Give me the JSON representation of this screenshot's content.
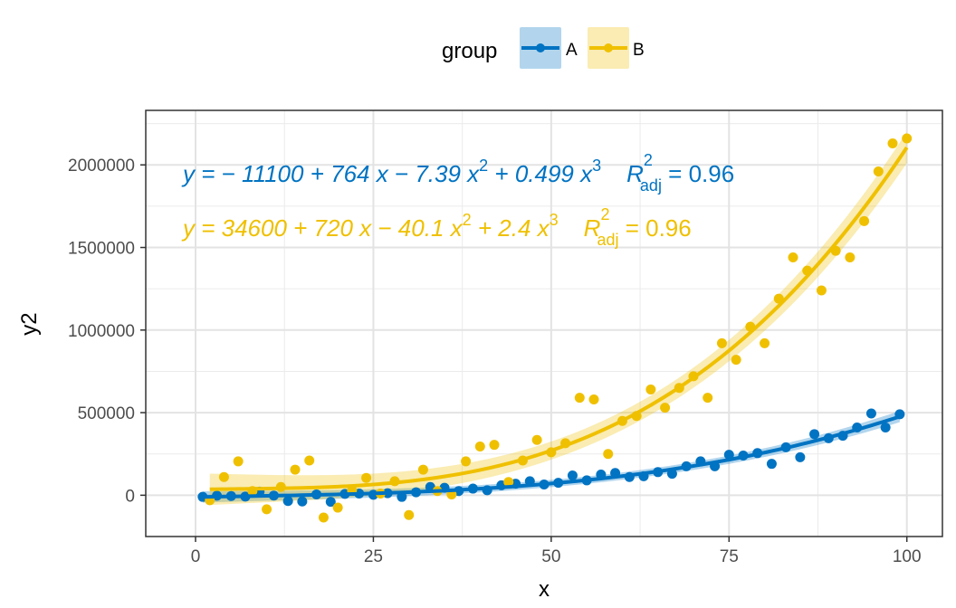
{
  "chart_data": {
    "type": "scatter",
    "xlabel": "x",
    "ylabel": "y2",
    "xlim": [
      -7,
      105
    ],
    "ylim": [
      -250000,
      2330000
    ],
    "x_ticks": [
      0,
      25,
      50,
      75,
      100
    ],
    "x_tick_labels": [
      "0",
      "25",
      "50",
      "75",
      "100"
    ],
    "y_ticks": [
      0,
      500000,
      1000000,
      1500000,
      2000000
    ],
    "y_tick_labels": [
      "0",
      "500000",
      "1000000",
      "1500000",
      "2000000"
    ],
    "grid": true,
    "legend": {
      "title": "group",
      "position": "top",
      "entries": [
        "A",
        "B"
      ]
    },
    "series": [
      {
        "name": "A",
        "color": "#0073C2",
        "fit": {
          "type": "cubic",
          "coef": [
            -11100,
            764,
            -7.39,
            0.499
          ],
          "r2_adj": 0.96
        },
        "equation": {
          "prefix": "y = − 11100 + 764 x − 7.39 x",
          "mid": " + 0.499 x",
          "rlabel": "R",
          "rsub": "adj",
          "rsup": "2",
          "rvalue": " = 0.96",
          "sup": "2",
          "sup3": "3"
        },
        "points": [
          [
            1,
            -10000
          ],
          [
            3,
            -3000
          ],
          [
            5,
            -5000
          ],
          [
            7,
            -8000
          ],
          [
            9,
            22000
          ],
          [
            11,
            -2000
          ],
          [
            13,
            -35000
          ],
          [
            15,
            -38000
          ],
          [
            17,
            5000
          ],
          [
            19,
            -40000
          ],
          [
            21,
            8000
          ],
          [
            23,
            10000
          ],
          [
            25,
            3000
          ],
          [
            27,
            12000
          ],
          [
            29,
            -10000
          ],
          [
            31,
            18000
          ],
          [
            33,
            50000
          ],
          [
            35,
            45000
          ],
          [
            37,
            25000
          ],
          [
            39,
            40000
          ],
          [
            41,
            30000
          ],
          [
            43,
            60000
          ],
          [
            45,
            70000
          ],
          [
            47,
            85000
          ],
          [
            49,
            65000
          ],
          [
            51,
            75000
          ],
          [
            53,
            120000
          ],
          [
            55,
            90000
          ],
          [
            57,
            125000
          ],
          [
            59,
            135000
          ],
          [
            61,
            110000
          ],
          [
            63,
            115000
          ],
          [
            65,
            140000
          ],
          [
            67,
            130000
          ],
          [
            69,
            175000
          ],
          [
            71,
            205000
          ],
          [
            73,
            175000
          ],
          [
            75,
            245000
          ],
          [
            77,
            240000
          ],
          [
            79,
            255000
          ],
          [
            81,
            190000
          ],
          [
            83,
            290000
          ],
          [
            85,
            230000
          ],
          [
            87,
            370000
          ],
          [
            89,
            345000
          ],
          [
            91,
            360000
          ],
          [
            93,
            410000
          ],
          [
            95,
            495000
          ],
          [
            97,
            410000
          ],
          [
            99,
            490000
          ]
        ]
      },
      {
        "name": "B",
        "color": "#EFC000",
        "fit": {
          "type": "cubic",
          "coef": [
            34600,
            720,
            -40.1,
            2.4
          ],
          "r2_adj": 0.96
        },
        "equation": {
          "prefix": "y = 34600 + 720 x − 40.1 x",
          "mid": " + 2.4 x",
          "rlabel": "R",
          "rsub": "adj",
          "rsup": "2",
          "rvalue": " = 0.96",
          "sup": "2",
          "sup3": "3"
        },
        "points": [
          [
            2,
            -30000
          ],
          [
            4,
            110000
          ],
          [
            6,
            205000
          ],
          [
            8,
            25000
          ],
          [
            10,
            -85000
          ],
          [
            12,
            50000
          ],
          [
            14,
            155000
          ],
          [
            16,
            210000
          ],
          [
            18,
            -135000
          ],
          [
            20,
            -75000
          ],
          [
            22,
            30000
          ],
          [
            24,
            105000
          ],
          [
            26,
            10000
          ],
          [
            28,
            85000
          ],
          [
            30,
            -120000
          ],
          [
            32,
            155000
          ],
          [
            34,
            25000
          ],
          [
            36,
            5000
          ],
          [
            38,
            205000
          ],
          [
            40,
            295000
          ],
          [
            42,
            305000
          ],
          [
            44,
            80000
          ],
          [
            46,
            210000
          ],
          [
            48,
            335000
          ],
          [
            50,
            260000
          ],
          [
            52,
            315000
          ],
          [
            54,
            590000
          ],
          [
            56,
            580000
          ],
          [
            58,
            250000
          ],
          [
            60,
            450000
          ],
          [
            62,
            480000
          ],
          [
            64,
            640000
          ],
          [
            66,
            530000
          ],
          [
            68,
            650000
          ],
          [
            70,
            720000
          ],
          [
            72,
            590000
          ],
          [
            74,
            920000
          ],
          [
            76,
            820000
          ],
          [
            78,
            1020000
          ],
          [
            80,
            920000
          ],
          [
            82,
            1190000
          ],
          [
            84,
            1440000
          ],
          [
            86,
            1360000
          ],
          [
            88,
            1240000
          ],
          [
            90,
            1480000
          ],
          [
            92,
            1440000
          ],
          [
            94,
            1660000
          ],
          [
            96,
            1960000
          ],
          [
            98,
            2130000
          ],
          [
            100,
            2160000
          ]
        ]
      }
    ]
  }
}
